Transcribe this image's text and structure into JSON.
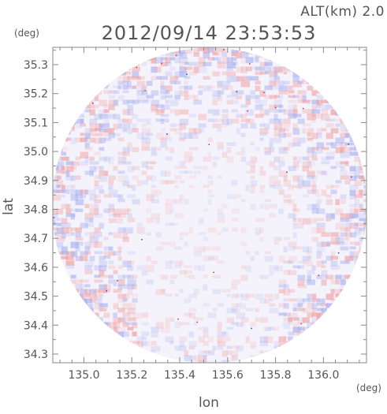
{
  "header": {
    "altitude_label": "ALT(km) 2.0",
    "timestamp": "2012/09/14 23:53:53"
  },
  "axes": {
    "y_unit": "(deg)",
    "x_unit": "(deg)",
    "y_label": "lat",
    "x_label": "lon",
    "x_range": [
      134.87,
      136.18
    ],
    "y_range": [
      34.27,
      35.36
    ],
    "x_ticks": [
      "135.0",
      "135.2",
      "135.4",
      "135.6",
      "135.8",
      "136.0"
    ],
    "y_ticks": [
      "35.3",
      "35.2",
      "35.1",
      "35.0",
      "34.9",
      "34.8",
      "34.7",
      "34.6",
      "34.5",
      "34.4",
      "34.3"
    ]
  },
  "map": {
    "coverage": "circular radar scan",
    "colors": {
      "positive": "#f0a0a0",
      "negative": "#a8b0f0",
      "near_zero": "#f4f2fa",
      "frame": "#888888"
    }
  }
}
